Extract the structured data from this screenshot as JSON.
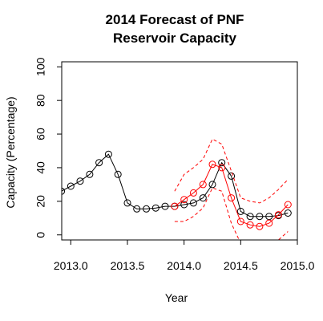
{
  "chart_data": {
    "type": "line",
    "title_lines": [
      "2014 Forecast of PNF",
      "Reservoir Capacity"
    ],
    "xlabel": "Year",
    "ylabel": "Capacity (Percentage)",
    "xlim": [
      2012.92,
      2015.0
    ],
    "ylim": [
      -3,
      103
    ],
    "x_ticks": [
      {
        "value": 2013.0,
        "label": "2013.0"
      },
      {
        "value": 2013.5,
        "label": "2013.5"
      },
      {
        "value": 2014.0,
        "label": "2014.0"
      },
      {
        "value": 2014.5,
        "label": "2014.5"
      },
      {
        "value": 2015.0,
        "label": "2015.0"
      }
    ],
    "y_ticks": [
      {
        "value": 0,
        "label": "0"
      },
      {
        "value": 20,
        "label": "20"
      },
      {
        "value": 40,
        "label": "40"
      },
      {
        "value": 60,
        "label": "60"
      },
      {
        "value": 80,
        "label": "80"
      },
      {
        "value": 100,
        "label": "100"
      }
    ],
    "grid": false,
    "series": [
      {
        "role": "observed",
        "color": "#000000",
        "marker": "open-circle",
        "x": [
          2012.917,
          2013.0,
          2013.083,
          2013.167,
          2013.25,
          2013.333,
          2013.417,
          2013.5,
          2013.583,
          2013.667,
          2013.75,
          2013.833,
          2013.917,
          2014.0,
          2014.083,
          2014.167,
          2014.25,
          2014.333,
          2014.417,
          2014.5,
          2014.583,
          2014.667,
          2014.75,
          2014.833,
          2014.917
        ],
        "values": [
          26,
          29,
          32,
          36,
          43,
          48,
          36,
          19,
          15.5,
          15.5,
          16,
          17,
          17,
          18,
          19,
          22,
          30,
          43,
          35,
          14,
          11,
          11,
          11,
          11.5,
          13
        ]
      },
      {
        "role": "forecast",
        "color": "#ff0000",
        "marker": "open-circle",
        "x": [
          2013.917,
          2014.0,
          2014.083,
          2014.167,
          2014.25,
          2014.333,
          2014.417,
          2014.5,
          2014.583,
          2014.667,
          2014.75,
          2014.833,
          2014.917
        ],
        "values": [
          17,
          21,
          25,
          30,
          42,
          40,
          22,
          8,
          6,
          5,
          7,
          12,
          18
        ]
      },
      {
        "role": "upper-bound",
        "color": "#ff0000",
        "line": "dashed",
        "x": [
          2013.917,
          2014.0,
          2014.083,
          2014.167,
          2014.25,
          2014.333,
          2014.417,
          2014.5,
          2014.583,
          2014.667,
          2014.75,
          2014.833,
          2014.917
        ],
        "values": [
          26,
          36,
          40,
          45,
          57,
          54,
          38,
          22,
          20,
          19,
          22,
          27,
          33
        ]
      },
      {
        "role": "lower-bound",
        "color": "#ff0000",
        "line": "dashed",
        "x": [
          2013.917,
          2014.0,
          2014.083,
          2014.167,
          2014.25,
          2014.333,
          2014.417,
          2014.5,
          2014.583,
          2014.667,
          2014.75,
          2014.833,
          2014.917
        ],
        "values": [
          8,
          8,
          11,
          16,
          28,
          26,
          7,
          -5,
          -8,
          -9,
          -7,
          -3,
          2
        ]
      }
    ]
  }
}
